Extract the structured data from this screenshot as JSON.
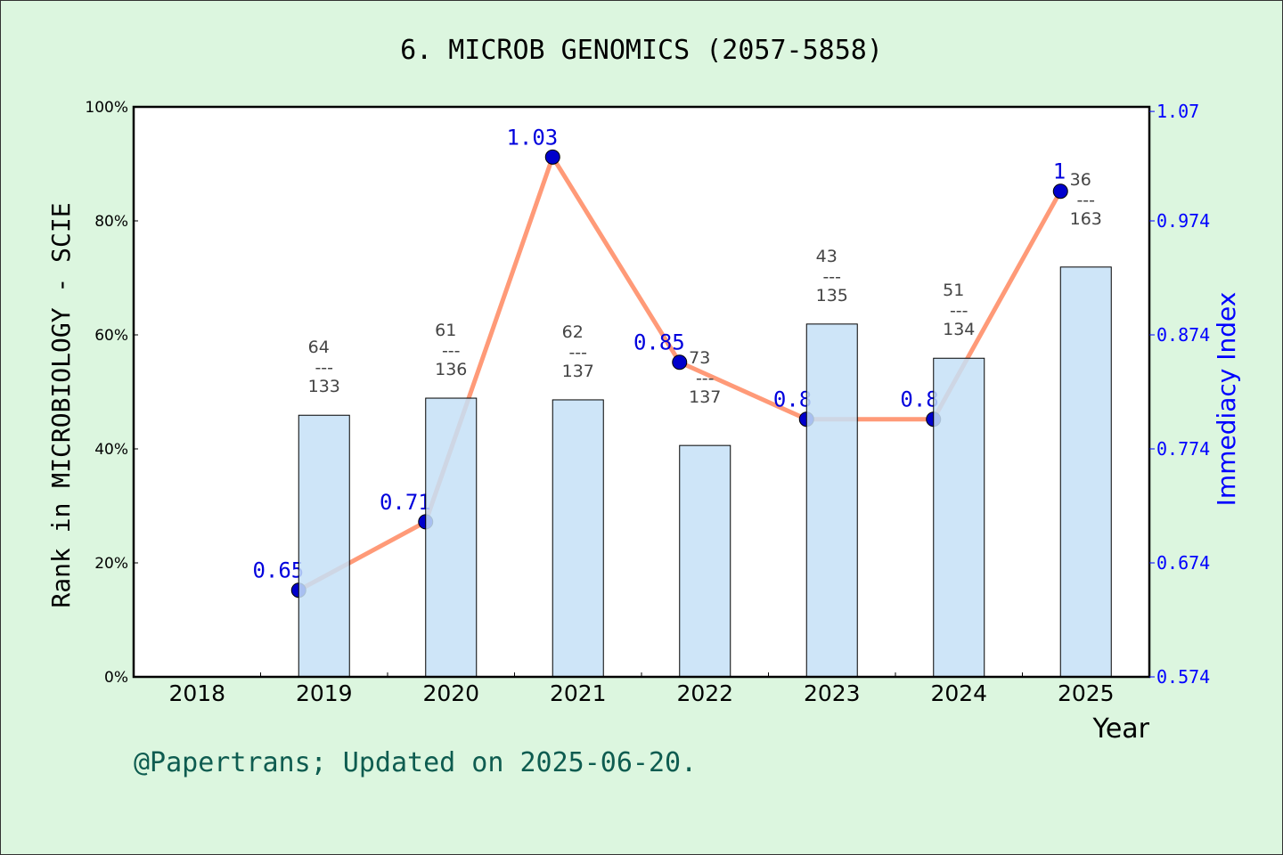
{
  "chart_data": {
    "type": "bar+line",
    "title": "6. MICROB GENOMICS (2057-5858)",
    "xlabel": "Year",
    "ylabel": "Rank in MICROBIOLOGY - SCIE",
    "y2label": "Immediacy Index",
    "categories": [
      "2018",
      "2019",
      "2020",
      "2021",
      "2022",
      "2023",
      "2024",
      "2025"
    ],
    "ylim": [
      0,
      100
    ],
    "yticks": [
      "0%",
      "20%",
      "40%",
      "60%",
      "80%",
      "100%"
    ],
    "y2lim": [
      0.574,
      1.074
    ],
    "y2ticks": [
      "0.574",
      "0.674",
      "0.774",
      "0.874",
      "0.974",
      "1.07"
    ],
    "bars": {
      "values_percent": [
        null,
        45.9,
        48.9,
        48.6,
        40.6,
        61.9,
        55.9,
        71.9
      ],
      "rank": [
        null,
        "64",
        "61",
        "62",
        "73",
        "43",
        "51",
        "36"
      ],
      "total": [
        null,
        "133",
        "136",
        "137",
        "137",
        "135",
        "134",
        "163"
      ],
      "separator": "---",
      "color": "#c5e0f7"
    },
    "line": {
      "values": [
        null,
        0.65,
        0.71,
        1.03,
        0.85,
        0.8,
        0.8,
        1.0
      ],
      "labels": [
        null,
        "0.65",
        "0.71",
        "1.03",
        "0.85",
        "0.8",
        "0.8",
        "1"
      ],
      "color": "#ff9a78",
      "marker_color": "#0000cc"
    },
    "grid": false
  },
  "footer": "@Papertrans; Updated on 2025-06-20.",
  "colors": {
    "background": "#dcf6df",
    "right_axis": "#0000ff",
    "footer": "#0e5c50"
  }
}
